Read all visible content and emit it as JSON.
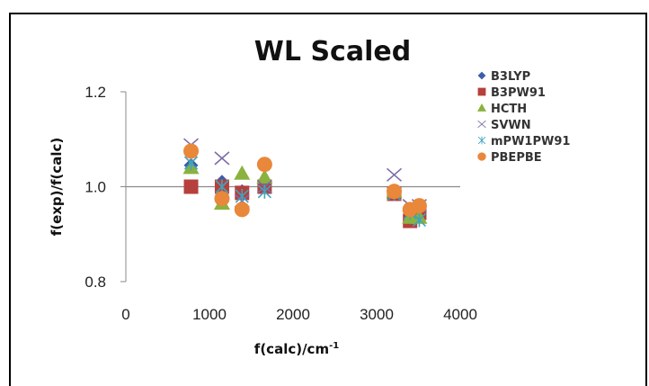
{
  "chart_data": {
    "type": "scatter",
    "title": "WL Scaled",
    "xlabel_main": "f(calc)/cm",
    "xlabel_sup": "-1",
    "ylabel": "f(exp)/f(calc)",
    "xlim": [
      0,
      4000
    ],
    "ylim": [
      0.8,
      1.2
    ],
    "xticks": [
      "0",
      "1000",
      "2000",
      "3000",
      "4000"
    ],
    "yticks": [
      "0.8",
      "1.0",
      "1.2"
    ],
    "reference_line_y": 1.0,
    "grid": false,
    "legend_position": "right",
    "series": [
      {
        "name": "B3LYP",
        "marker": "diamond",
        "color": "#3b5fa8",
        "points": [
          [
            780,
            1.045
          ],
          [
            1150,
            1.01
          ],
          [
            1390,
            0.99
          ],
          [
            1660,
            1.01
          ],
          [
            3210,
            0.985
          ],
          [
            3400,
            0.94
          ],
          [
            3510,
            0.94
          ]
        ]
      },
      {
        "name": "B3PW91",
        "marker": "square",
        "color": "#b5403c",
        "points": [
          [
            780,
            1.0
          ],
          [
            1150,
            1.0
          ],
          [
            1390,
            0.987
          ],
          [
            1660,
            1.0
          ],
          [
            3210,
            0.985
          ],
          [
            3400,
            0.928
          ],
          [
            3510,
            0.945
          ]
        ]
      },
      {
        "name": "HCTH",
        "marker": "triangle",
        "color": "#8ab23f",
        "points": [
          [
            780,
            1.04
          ],
          [
            1150,
            0.965
          ],
          [
            1390,
            1.028
          ],
          [
            1660,
            1.02
          ],
          [
            3210,
            0.99
          ],
          [
            3400,
            0.935
          ],
          [
            3510,
            0.935
          ]
        ]
      },
      {
        "name": "SVWN",
        "marker": "x",
        "color": "#7b6ca6",
        "points": [
          [
            780,
            1.088
          ],
          [
            1150,
            1.06
          ],
          [
            1390,
            0.97
          ],
          [
            1660,
            1.0
          ],
          [
            3210,
            1.025
          ],
          [
            3400,
            0.96
          ],
          [
            3510,
            0.96
          ]
        ]
      },
      {
        "name": "mPW1PW91",
        "marker": "asterisk",
        "color": "#3fa3bf",
        "points": [
          [
            780,
            1.05
          ],
          [
            1150,
            1.0
          ],
          [
            1390,
            0.98
          ],
          [
            1660,
            0.99
          ],
          [
            3210,
            0.985
          ],
          [
            3400,
            0.945
          ],
          [
            3510,
            0.93
          ]
        ]
      },
      {
        "name": "PBEPBE",
        "marker": "circle",
        "color": "#e9873a",
        "points": [
          [
            780,
            1.075
          ],
          [
            1150,
            0.975
          ],
          [
            1390,
            0.952
          ],
          [
            1660,
            1.047
          ],
          [
            3210,
            0.99
          ],
          [
            3400,
            0.952
          ],
          [
            3510,
            0.96
          ]
        ]
      }
    ]
  }
}
